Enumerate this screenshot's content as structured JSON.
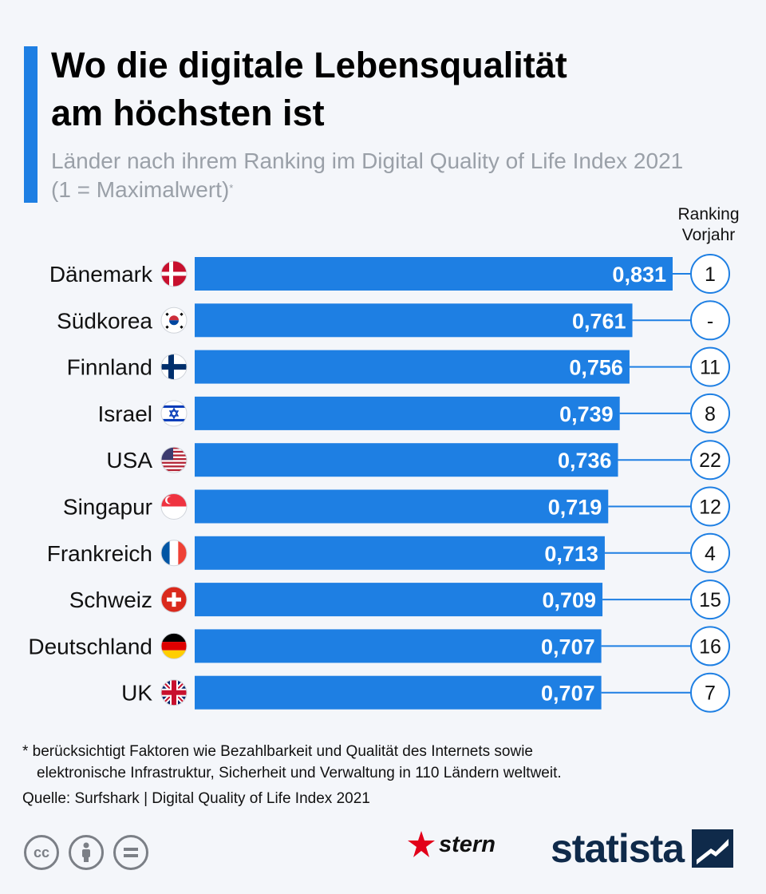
{
  "header": {
    "title_line1": "Wo die digitale Lebensqualität",
    "title_line2": "am höchsten ist",
    "subtitle": "Länder nach ihrem Ranking im Digital Quality of Life Index 2021 (1 = Maximalwert)",
    "subtitle_mark": "*",
    "column_head_line1": "Ranking",
    "column_head_line2": "Vorjahr"
  },
  "colors": {
    "bar": "#1e7fe3",
    "accent": "#1e7fe3",
    "background": "#f4f6fa",
    "subtitle": "#9aa0a8",
    "circle_stroke": "#1e7fe3"
  },
  "chart_data": {
    "type": "bar",
    "orientation": "horizontal",
    "title": "Wo die digitale Lebensqualität am höchsten ist",
    "subtitle": "Länder nach ihrem Ranking im Digital Quality of Life Index 2021 (1 = Maximalwert)",
    "categories": [
      "Dänemark",
      "Südkorea",
      "Finnland",
      "Israel",
      "USA",
      "Singapur",
      "Frankreich",
      "Schweiz",
      "Deutschland",
      "UK"
    ],
    "values": [
      0.831,
      0.761,
      0.756,
      0.739,
      0.736,
      0.719,
      0.713,
      0.709,
      0.707,
      0.707
    ],
    "value_labels": [
      "0,831",
      "0,761",
      "0,756",
      "0,739",
      "0,736",
      "0,719",
      "0,713",
      "0,709",
      "0,707",
      "0,707"
    ],
    "flag_icons": [
      "denmark-flag-icon",
      "south-korea-flag-icon",
      "finland-flag-icon",
      "israel-flag-icon",
      "usa-flag-icon",
      "singapore-flag-icon",
      "france-flag-icon",
      "switzerland-flag-icon",
      "germany-flag-icon",
      "uk-flag-icon"
    ],
    "previous_year_rank": [
      "1",
      "-",
      "11",
      "8",
      "22",
      "12",
      "4",
      "15",
      "16",
      "7"
    ],
    "previous_year_rank_label": "Ranking Vorjahr",
    "xlim": [
      0,
      0.831
    ],
    "grid": false,
    "legend": "none"
  },
  "footer": {
    "footnote_line1": "* berücksichtigt Faktoren wie Bezahlbarkeit und Qualität des Internets sowie",
    "footnote_line2": "elektronische Infrastruktur, Sicherheit und Verwaltung in 110 Ländern weltweit.",
    "source": "Quelle: Surfshark | Digital Quality of Life Index 2021",
    "cc_icons": [
      "cc-icon",
      "attribution-icon",
      "no-derivatives-icon"
    ],
    "cc_label": "cc",
    "stern_logo": "stern",
    "statista_logo": "statista"
  }
}
